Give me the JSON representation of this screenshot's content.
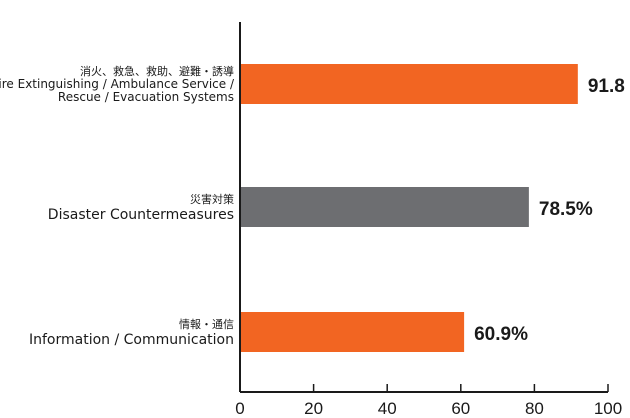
{
  "chart_data": {
    "type": "bar",
    "orientation": "horizontal",
    "categories": [
      {
        "label_ja": "消火、救急、救助、避難・誘導",
        "label_en_lines": [
          "Fire Extinguishing / Ambulance Service /",
          "Rescue / Evacuation Systems"
        ],
        "value": 91.8,
        "value_label": "91.8",
        "color": "#f26522"
      },
      {
        "label_ja": "災害対策",
        "label_en_lines": [
          "Disaster Countermeasures"
        ],
        "value": 78.5,
        "value_label": "78.5%",
        "color": "#6d6e71"
      },
      {
        "label_ja": "情報・通信",
        "label_en_lines": [
          "Information / Communication"
        ],
        "value": 60.9,
        "value_label": "60.9%",
        "color": "#f26522"
      }
    ],
    "xlim": [
      0,
      100
    ],
    "xticks": [
      0,
      20,
      40,
      60,
      80,
      100
    ],
    "grid": false,
    "title": "",
    "xlabel": "",
    "ylabel": ""
  }
}
